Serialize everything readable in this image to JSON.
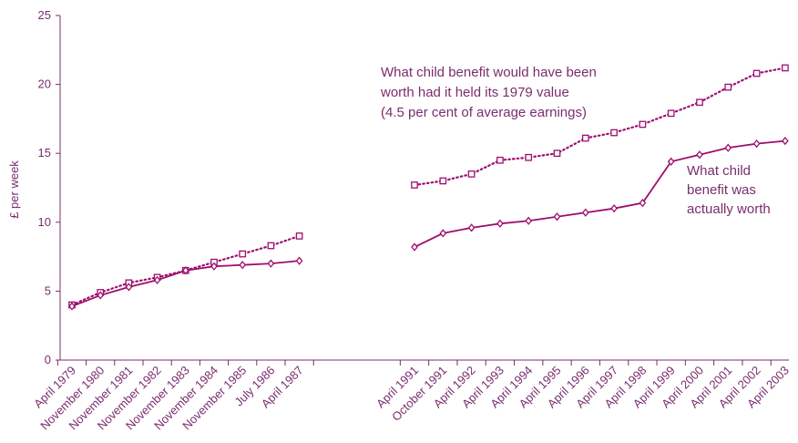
{
  "chart_data": {
    "type": "line",
    "ylabel": "£ per week",
    "ylim": [
      0,
      25
    ],
    "yticks": [
      "0",
      "5",
      "10",
      "15",
      "20",
      "25"
    ],
    "categories": [
      "April 1979",
      "November 1980",
      "November 1981",
      "November 1982",
      "November 1983",
      "November 1984",
      "November 1985",
      "July 1986",
      "April 1987",
      "April 1991",
      "October 1991",
      "April 1992",
      "April 1993",
      "April 1994",
      "April 1995",
      "April 1996",
      "April 1997",
      "April 1998",
      "April 1999",
      "April 2000",
      "April 2001",
      "April 2002",
      "April 2003"
    ],
    "gap_after_index": 8,
    "series": [
      {
        "name": "What child benefit would have been worth had it held its 1979 value (4.5 per cent of average earnings)",
        "style": "dotted",
        "marker": "square",
        "color": "#9e0e6e",
        "segments": [
          [
            4.0,
            4.9,
            5.6,
            6.0,
            6.5,
            7.1,
            7.7,
            8.3,
            9.0
          ],
          [
            12.7,
            13.0,
            13.5,
            14.5,
            14.7,
            15.0,
            16.1,
            16.5,
            17.1,
            17.9,
            18.7,
            19.8,
            20.8,
            21.2
          ]
        ]
      },
      {
        "name": "What child benefit was actually worth",
        "style": "solid",
        "marker": "diamond",
        "color": "#9e0e6e",
        "segments": [
          [
            3.9,
            4.7,
            5.3,
            5.8,
            6.5,
            6.8,
            6.9,
            7.0,
            7.2
          ],
          [
            8.2,
            9.2,
            9.6,
            9.9,
            10.1,
            10.4,
            10.7,
            11.0,
            11.4,
            14.4,
            14.9,
            15.4,
            15.7,
            15.9
          ]
        ]
      }
    ],
    "annotations": [
      {
        "series": 0,
        "lines": [
          "What child benefit would have been",
          "worth had it held its 1979 value",
          "(4.5 per cent of average earnings)"
        ]
      },
      {
        "series": 1,
        "lines": [
          "What child",
          "benefit was",
          "actually worth"
        ]
      }
    ],
    "colors": {
      "text": "#7a2d6e",
      "axis": "#7a2d6e",
      "series": "#9e0e6e"
    }
  }
}
